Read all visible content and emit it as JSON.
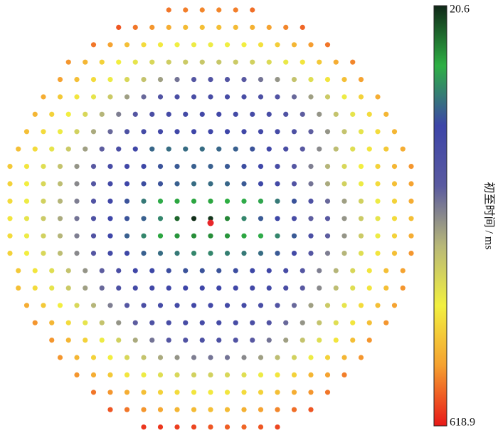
{
  "chart_data": {
    "type": "scatter",
    "colorbar_label": "初至时间 / ms",
    "clim": [
      20.6,
      618.9
    ],
    "cticks": [
      20.6,
      618.9
    ],
    "colormap": [
      "#102818",
      "#2eb044",
      "#3d45a8",
      "#5a5aa0",
      "#b8b878",
      "#f2f040",
      "#f5a030",
      "#e81818"
    ],
    "rows": [
      [
        560,
        555,
        550,
        550,
        555,
        565
      ],
      [
        580,
        560,
        540,
        520,
        505,
        500,
        500,
        505,
        515,
        530,
        550,
        570
      ],
      [
        560,
        530,
        500,
        470,
        455,
        445,
        440,
        440,
        445,
        450,
        465,
        485,
        510,
        535,
        560
      ],
      [
        540,
        510,
        480,
        450,
        430,
        410,
        395,
        390,
        385,
        385,
        390,
        400,
        415,
        435,
        460,
        490,
        520,
        550
      ],
      [
        530,
        500,
        470,
        440,
        410,
        380,
        340,
        300,
        260,
        250,
        255,
        270,
        300,
        330,
        380,
        420,
        460,
        500,
        530
      ],
      [
        520,
        490,
        460,
        430,
        390,
        340,
        290,
        250,
        230,
        225,
        220,
        220,
        225,
        235,
        250,
        290,
        340,
        390,
        440,
        480,
        520
      ],
      [
        510,
        480,
        450,
        410,
        360,
        310,
        260,
        230,
        215,
        210,
        205,
        205,
        210,
        215,
        225,
        245,
        280,
        330,
        380,
        430,
        470,
        510
      ],
      [
        500,
        470,
        440,
        400,
        350,
        290,
        240,
        215,
        205,
        200,
        195,
        195,
        195,
        200,
        205,
        215,
        240,
        280,
        330,
        380,
        430,
        470,
        510
      ],
      [
        500,
        470,
        430,
        390,
        340,
        280,
        230,
        200,
        165,
        160,
        160,
        160,
        165,
        170,
        180,
        200,
        230,
        270,
        320,
        370,
        420,
        460,
        490,
        520
      ],
      [
        490,
        460,
        420,
        380,
        330,
        270,
        220,
        200,
        190,
        180,
        175,
        170,
        170,
        175,
        185,
        195,
        220,
        260,
        310,
        360,
        410,
        450,
        480,
        510,
        540
      ],
      [
        480,
        450,
        410,
        370,
        320,
        260,
        210,
        195,
        185,
        180,
        170,
        160,
        160,
        165,
        175,
        190,
        210,
        250,
        300,
        350,
        400,
        440,
        470,
        500,
        530
      ],
      [
        470,
        440,
        400,
        360,
        310,
        250,
        200,
        180,
        150,
        110,
        100,
        100,
        100,
        105,
        110,
        115,
        150,
        180,
        240,
        290,
        340,
        400,
        440,
        480,
        520
      ],
      [
        460,
        430,
        390,
        350,
        300,
        240,
        195,
        180,
        170,
        140,
        60,
        25,
        30,
        80,
        140,
        175,
        190,
        220,
        280,
        270,
        330,
        390,
        430,
        470,
        500
      ],
      [
        470,
        440,
        400,
        360,
        310,
        250,
        195,
        170,
        140,
        100,
        90,
        85,
        85,
        90,
        100,
        110,
        140,
        175,
        230,
        280,
        330,
        390,
        440,
        480,
        520
      ],
      [
        480,
        450,
        410,
        370,
        320,
        260,
        210,
        190,
        170,
        160,
        150,
        140,
        140,
        145,
        150,
        160,
        175,
        210,
        260,
        310,
        360,
        420,
        460,
        500,
        540
      ],
      [
        490,
        460,
        420,
        380,
        330,
        280,
        230,
        200,
        190,
        185,
        180,
        180,
        180,
        185,
        190,
        200,
        220,
        260,
        310,
        360,
        410,
        460,
        500,
        530
      ],
      [
        500,
        470,
        430,
        390,
        340,
        290,
        240,
        215,
        205,
        200,
        195,
        195,
        195,
        200,
        205,
        210,
        230,
        270,
        320,
        370,
        420,
        460,
        500,
        540
      ],
      [
        520,
        490,
        450,
        410,
        360,
        310,
        260,
        230,
        215,
        210,
        205,
        205,
        210,
        215,
        225,
        250,
        290,
        340,
        390,
        430,
        470,
        500,
        530
      ],
      [
        540,
        510,
        470,
        430,
        380,
        330,
        280,
        240,
        225,
        220,
        215,
        215,
        220,
        230,
        250,
        290,
        330,
        380,
        420,
        460,
        500,
        540
      ],
      [
        540,
        510,
        480,
        440,
        400,
        350,
        300,
        260,
        250,
        240,
        240,
        250,
        270,
        300,
        340,
        380,
        420,
        460,
        500,
        540
      ],
      [
        540,
        510,
        480,
        450,
        410,
        380,
        350,
        330,
        310,
        300,
        300,
        320,
        340,
        370,
        400,
        440,
        480,
        510,
        540
      ],
      [
        540,
        520,
        490,
        460,
        440,
        420,
        410,
        400,
        400,
        410,
        420,
        440,
        460,
        480,
        510,
        530,
        555
      ],
      [
        560,
        540,
        520,
        500,
        480,
        470,
        460,
        455,
        460,
        470,
        480,
        500,
        520,
        540,
        560
      ],
      [
        580,
        560,
        540,
        525,
        510,
        505,
        500,
        505,
        515,
        530,
        550,
        565,
        580
      ],
      [
        600,
        600,
        595,
        590,
        580,
        575,
        570,
        580,
        590
      ]
    ]
  }
}
